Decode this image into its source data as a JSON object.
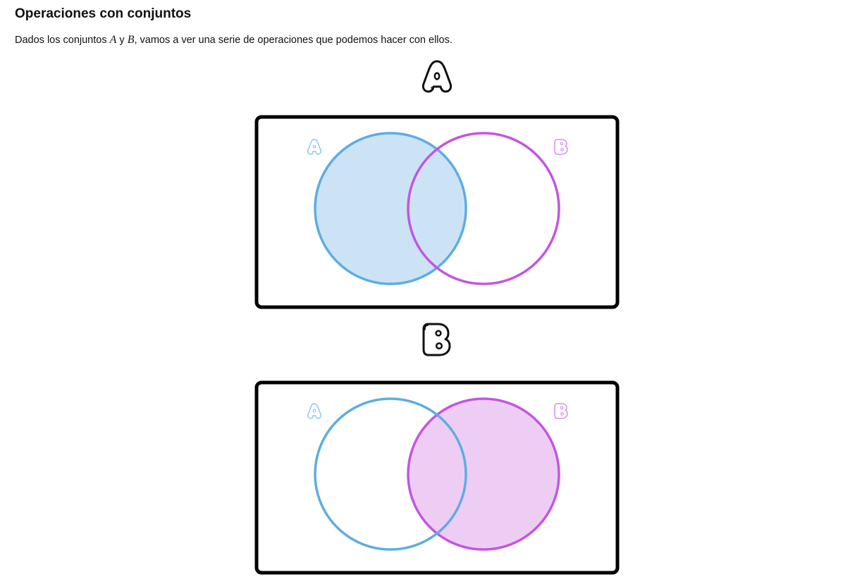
{
  "heading": "Operaciones con conjuntos",
  "intro": {
    "before": "Dados los conjuntos ",
    "set_a": "A",
    "connector": " y ",
    "set_b": "B",
    "after": ", vamos a ver una serie de operaciones que podemos hacer con ellos."
  },
  "colors": {
    "set_a": "#5dade2",
    "set_a_fill": "#cce3f6",
    "set_b": "#c355e3",
    "set_b_fill": "#eecdf5",
    "frame": "#000000"
  },
  "sections": [
    {
      "letter": "A",
      "letter_icon": "bubble-letter-a-icon",
      "shaded_set": "A"
    },
    {
      "letter": "B",
      "letter_icon": "bubble-letter-b-icon",
      "shaded_set": "B"
    }
  ]
}
